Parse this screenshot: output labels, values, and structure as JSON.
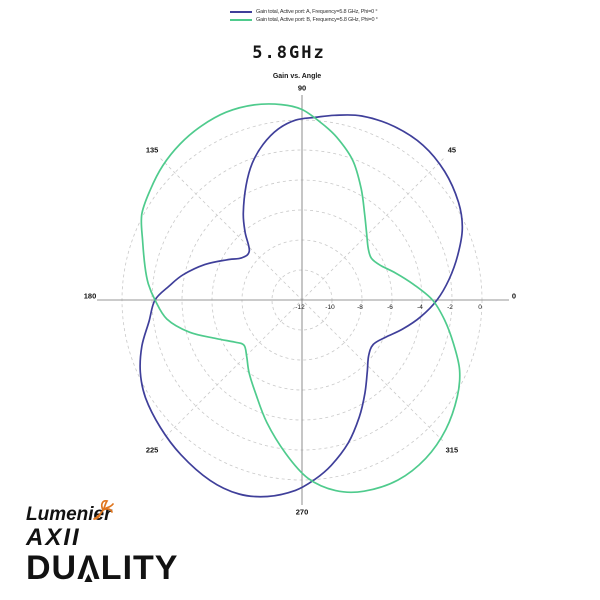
{
  "title": "5.8GHz",
  "legend": {
    "items": [
      {
        "label": "Gain total, Active port: A, Frequency=5.8 GHz, Phi=0 °",
        "color": "#3f3f9a"
      },
      {
        "label": "Gain total, Active port: B, Frequency=5.8 GHz, Phi=0 °",
        "color": "#4fcb8d"
      }
    ]
  },
  "chart_data": {
    "type": "line",
    "subtype": "polar",
    "title": "5.8GHz",
    "subtitle": "Gain vs. Angle",
    "angle_labels_deg": [
      0,
      45,
      90,
      135,
      180,
      225,
      270,
      315
    ],
    "radial_ticks_db": [
      -12,
      -10,
      -8,
      -6,
      -4,
      -2,
      0
    ],
    "radial_range_db": [
      -12,
      0
    ],
    "grid": true,
    "legend_position": "top",
    "colors": {
      "grid": "#c9c9c9",
      "axis": "#979797",
      "label": "#1a1a1a"
    },
    "series": [
      {
        "name": "Gain total, Active port: A, Frequency=5.8 GHz, Phi=0 °",
        "color": "#3f3f9a",
        "points_deg_db": [
          [
            0,
            -3.0
          ],
          [
            8,
            -2.1
          ],
          [
            16,
            -1.2
          ],
          [
            24,
            -0.3
          ],
          [
            32,
            0.3
          ],
          [
            42,
            0.8
          ],
          [
            52,
            1.1
          ],
          [
            62,
            1.1
          ],
          [
            72,
            0.9
          ],
          [
            80,
            0.5
          ],
          [
            86,
            0.2
          ],
          [
            92,
            0.0
          ],
          [
            98,
            -0.5
          ],
          [
            104,
            -1.3
          ],
          [
            110,
            -2.3
          ],
          [
            116,
            -3.5
          ],
          [
            124,
            -5.0
          ],
          [
            130,
            -6.1
          ],
          [
            137,
            -7.2
          ],
          [
            145,
            -7.1
          ],
          [
            152,
            -6.3
          ],
          [
            160,
            -5.1
          ],
          [
            168,
            -3.9
          ],
          [
            174,
            -3.1
          ],
          [
            180,
            -2.2
          ],
          [
            188,
            -1.7
          ],
          [
            196,
            -0.9
          ],
          [
            204,
            -0.2
          ],
          [
            212,
            0.3
          ],
          [
            222,
            0.7
          ],
          [
            232,
            1.1
          ],
          [
            243,
            1.5
          ],
          [
            252,
            1.6
          ],
          [
            260,
            1.3
          ],
          [
            268,
            0.7
          ],
          [
            274,
            0.0
          ],
          [
            280,
            -0.8
          ],
          [
            288,
            -2.0
          ],
          [
            296,
            -3.3
          ],
          [
            304,
            -4.5
          ],
          [
            312,
            -5.5
          ],
          [
            320,
            -6.2
          ],
          [
            328,
            -6.4
          ],
          [
            336,
            -5.9
          ],
          [
            344,
            -5.0
          ],
          [
            352,
            -4.0
          ]
        ]
      },
      {
        "name": "Gain total, Active port: B, Frequency=5.8 GHz, Phi=0 °",
        "color": "#4fcb8d",
        "points_deg_db": [
          [
            0,
            -3.3
          ],
          [
            8,
            -4.5
          ],
          [
            16,
            -5.5
          ],
          [
            24,
            -6.3
          ],
          [
            31,
            -6.6
          ],
          [
            38,
            -6.4
          ],
          [
            46,
            -5.8
          ],
          [
            54,
            -4.9
          ],
          [
            62,
            -3.6
          ],
          [
            70,
            -2.1
          ],
          [
            78,
            -0.9
          ],
          [
            84,
            -0.1
          ],
          [
            90,
            0.7
          ],
          [
            96,
            1.1
          ],
          [
            104,
            1.4
          ],
          [
            112,
            1.5
          ],
          [
            120,
            1.4
          ],
          [
            128,
            1.2
          ],
          [
            136,
            0.9
          ],
          [
            144,
            0.5
          ],
          [
            152,
            0.1
          ],
          [
            160,
            -0.7
          ],
          [
            168,
            -1.3
          ],
          [
            174,
            -1.7
          ],
          [
            180,
            -2.2
          ],
          [
            188,
            -2.9
          ],
          [
            196,
            -4.2
          ],
          [
            204,
            -5.7
          ],
          [
            212,
            -6.7
          ],
          [
            218,
            -7.1
          ],
          [
            226,
            -6.7
          ],
          [
            234,
            -6.0
          ],
          [
            244,
            -5.0
          ],
          [
            254,
            -3.5
          ],
          [
            264,
            -1.7
          ],
          [
            272,
            -0.1
          ],
          [
            280,
            0.9
          ],
          [
            288,
            1.4
          ],
          [
            298,
            1.6
          ],
          [
            308,
            1.4
          ],
          [
            318,
            0.9
          ],
          [
            328,
            0.2
          ],
          [
            336,
            -0.5
          ],
          [
            344,
            -1.5
          ],
          [
            352,
            -2.4
          ]
        ]
      }
    ]
  },
  "branding": {
    "brand": "Lumenier",
    "model": "AXII",
    "product": "DUALITY",
    "bird_color": "#e0761f",
    "triangle_glyph": "▲"
  }
}
